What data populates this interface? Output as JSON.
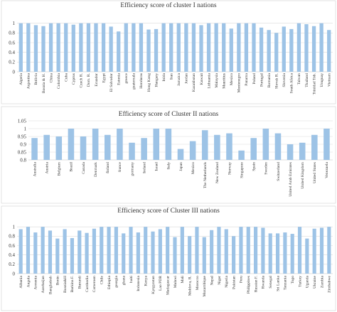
{
  "colors": {
    "bar": "#9dc3e6",
    "grid": "#d9d9d9",
    "text": "#333333"
  },
  "chart_data": [
    {
      "type": "bar",
      "title": "Efficiency score of cluster I nations",
      "ylim": [
        0,
        1.2
      ],
      "yticks": [
        0,
        0.2,
        0.4,
        0.6,
        0.8,
        1
      ],
      "ytick_labels": [
        "0",
        "0.2",
        "0.4",
        "0.6",
        "0.8",
        "1"
      ],
      "grid": true,
      "categories": [
        "Algeria",
        "Argentina",
        "Bolivia",
        "Bosnia & H.",
        "China",
        "Colombia",
        "Cuba",
        "Cyprus",
        "Czech R.",
        "Dom. R.",
        "Ecuador",
        "Egypt",
        "El Salvador",
        "Estonia",
        "greece",
        "guatemala",
        "Honduras",
        "Hong Kong",
        "Hungary",
        "Inida",
        "Iran",
        "Jamaica",
        "Jordan",
        "Kazakhstan",
        "Kuwait",
        "Lithuania",
        "Malaysia",
        "Mauritius",
        "Mexico",
        "Montenegro",
        "Panama",
        "Poland",
        "Portugal",
        "Romania",
        "Slovak R.",
        "Slovenia",
        "South Africa",
        "Taiwan",
        "Thailand",
        "Trinidad Tob.",
        "Uruguay",
        "Vietnam"
      ],
      "values": [
        1,
        1,
        0.96,
        0.94,
        1,
        1,
        1,
        0.97,
        1,
        1,
        1,
        1,
        0.93,
        0.83,
        1,
        1,
        1,
        0.87,
        0.88,
        1,
        1,
        1,
        1,
        1,
        0.96,
        1,
        1,
        1,
        0.89,
        1,
        1,
        1,
        0.91,
        0.86,
        0.8,
        0.93,
        0.88,
        1,
        0.98,
        0.94,
        1,
        0.86
      ]
    },
    {
      "type": "bar",
      "title": "Efficiency score of Cluster II nations",
      "ylim": [
        0.8,
        1.05
      ],
      "yticks": [
        0.8,
        0.85,
        0.9,
        0.95,
        1,
        1.05
      ],
      "ytick_labels": [
        "0.8",
        "0.85",
        "0.9",
        "0.95",
        "1",
        "1.05"
      ],
      "grid": true,
      "categories": [
        "Australia",
        "Austria",
        "Belgium",
        "Brazil",
        "Canada",
        "Denmark",
        "finland",
        "france",
        "germany",
        "Ireland",
        "Israel",
        "Italy",
        "Japan",
        "Mexico",
        "The Netherlands",
        "New Zealand",
        "Norway",
        "Singapore",
        "Spain",
        "Sweden",
        "Switzerland",
        "United Arab Emirates",
        "United Kingdom",
        "United States",
        "Venezuela"
      ],
      "values": [
        0.94,
        0.96,
        0.95,
        1,
        0.95,
        1,
        0.96,
        1,
        0.91,
        0.94,
        1,
        1,
        0.87,
        0.92,
        0.99,
        0.96,
        0.97,
        0.86,
        0.94,
        1,
        0.97,
        0.9,
        0.91,
        0.96,
        1
      ]
    },
    {
      "type": "bar",
      "title": "Efficiency score of Cluster III nations",
      "ylim": [
        0,
        1.2
      ],
      "yticks": [
        0,
        0.2,
        0.4,
        0.6,
        0.8,
        1
      ],
      "ytick_labels": [
        "0",
        "0.2",
        "0.4",
        "0.6",
        "0.8",
        "1"
      ],
      "grid": true,
      "categories": [
        "Albania",
        "Angola",
        "Armenia",
        "Azerbaijan",
        "Bangladesh",
        "Benin",
        "Bosnia&H",
        "Burkina F.",
        "Burundi",
        "Cambodia",
        "Cameroon",
        "Chile",
        "Ethiopia",
        "georgia",
        "ghana",
        "haiti",
        "Indonesia",
        "Kenya",
        "Kyrgyzstan",
        "Lao PDR",
        "Madagascar",
        "Malawi",
        "Mali",
        "Moldova, R.",
        "Morocco",
        "Mozambique",
        "Nepal",
        "Niger",
        "Nigeria",
        "Pakistan",
        "Peru",
        "Philippines",
        "Russian F.",
        "Rwanda",
        "Senegal",
        "Sri Lanka",
        "Tanzania",
        "Togo",
        "Turkey",
        "Uganda",
        "Ukraine",
        "Zambia",
        "Zimbabwe"
      ],
      "values": [
        0.95,
        1,
        0.88,
        1,
        0.92,
        0.75,
        0.95,
        0.76,
        0.92,
        0.87,
        0.96,
        1,
        1,
        1,
        0.86,
        1,
        0.88,
        1,
        0.9,
        0.95,
        1,
        0.78,
        1,
        0.8,
        1,
        0.78,
        0.93,
        1,
        0.95,
        0.8,
        1,
        1,
        1,
        0.98,
        0.86,
        0.86,
        0.88,
        0.85,
        1,
        0.75,
        0.96,
        0.98,
        1
      ]
    }
  ]
}
